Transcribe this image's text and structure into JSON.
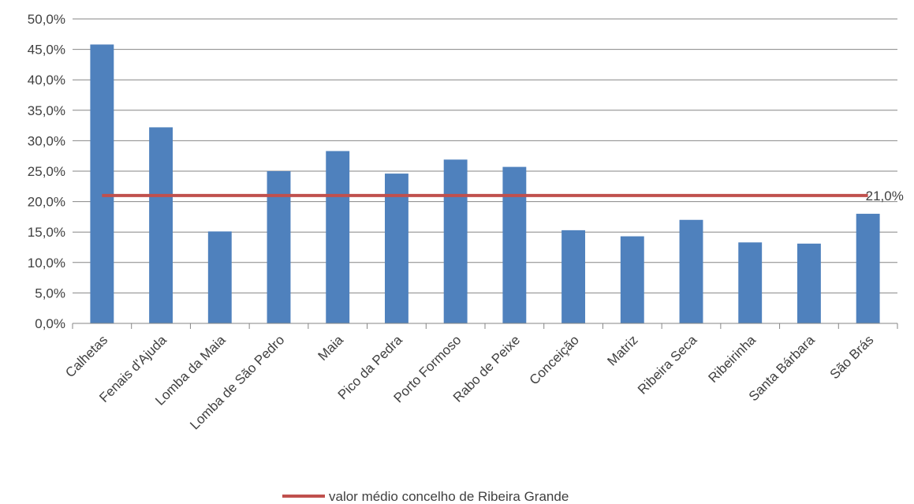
{
  "chart_data": {
    "type": "bar",
    "categories": [
      "Calhetas",
      "Fenais d'Ajuda",
      "Lomba da Maia",
      "Lomba de São Pedro",
      "Maia",
      "Pico da Pedra",
      "Porto Formoso",
      "Rabo de Peixe",
      "Conceição",
      "Matriz",
      "Ribeira Seca",
      "Ribeirinha",
      "Santa Bárbara",
      "São Brás"
    ],
    "series": [
      {
        "type": "bar",
        "values": [
          45.8,
          32.2,
          15.1,
          25.0,
          28.3,
          24.6,
          26.9,
          25.7,
          15.3,
          14.3,
          17.0,
          13.3,
          13.1,
          18.0
        ],
        "color": "#4f81bd"
      },
      {
        "name": "valor médio concelho de Ribeira Grande",
        "type": "line",
        "values": [
          21.0,
          21.0,
          21.0,
          21.0,
          21.0,
          21.0,
          21.0,
          21.0,
          21.0,
          21.0,
          21.0,
          21.0,
          21.0,
          21.0
        ],
        "color": "#c0504d",
        "data_label": "21,0%"
      }
    ],
    "y_ticks": [
      "0,0%",
      "5,0%",
      "10,0%",
      "15,0%",
      "20,0%",
      "25,0%",
      "30,0%",
      "35,0%",
      "40,0%",
      "45,0%",
      "50,0%"
    ],
    "ylim": [
      0,
      50
    ],
    "y_step": 5,
    "title": "",
    "xlabel": "",
    "ylabel": "",
    "grid": true,
    "legend_position": "bottom"
  },
  "legend": {
    "label": "valor médio concelho de Ribeira Grande"
  },
  "colors": {
    "bar": "#4f81bd",
    "line": "#c0504d",
    "grid": "#868686",
    "axis": "#868686",
    "text": "#404040"
  }
}
